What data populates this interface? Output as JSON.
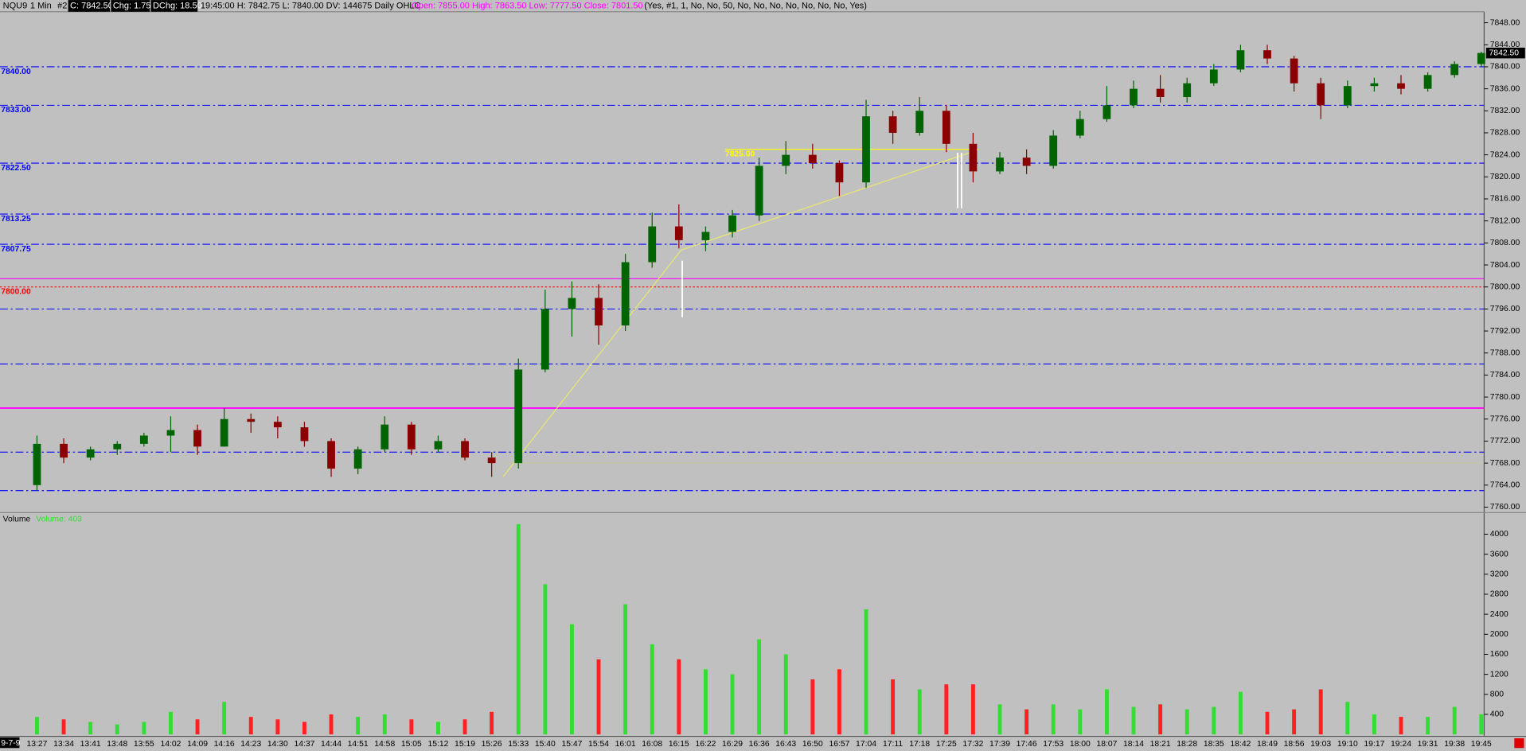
{
  "header": {
    "symbol": "NQU9",
    "interval": "1 Min",
    "chart_no": "#2",
    "close": "C: 7842.50",
    "chg": "Chg: 1.75",
    "dchg": "DChg: 18.50",
    "bar_info": "19:45:00 H: 7842.75 L: 7840.00 DV: 144675 Daily OHLC",
    "daily": "Open: 7855.00  High: 7863.50  Low: 7777.50  Close: 7801.50",
    "settings": "(Yes, #1, 1, No, No, 50, No, No, No, No, No, No, No, Yes)"
  },
  "date_label": "9-7-9",
  "chart_data": {
    "type": "candlestick",
    "categories": [
      "13:27",
      "13:34",
      "13:41",
      "13:48",
      "13:55",
      "14:02",
      "14:09",
      "14:16",
      "14:23",
      "14:30",
      "14:37",
      "14:44",
      "14:51",
      "14:58",
      "15:05",
      "15:12",
      "15:19",
      "15:26",
      "15:33",
      "15:40",
      "15:47",
      "15:54",
      "16:01",
      "16:08",
      "16:15",
      "16:22",
      "16:29",
      "16:36",
      "16:43",
      "16:50",
      "16:57",
      "17:04",
      "17:11",
      "17:18",
      "17:25",
      "17:32",
      "17:39",
      "17:46",
      "17:53",
      "18:00",
      "18:07",
      "18:14",
      "18:21",
      "18:28",
      "18:35",
      "18:42",
      "18:49",
      "18:56",
      "19:03",
      "19:10",
      "19:17",
      "19:24",
      "19:31",
      "19:38",
      "19:45"
    ],
    "open": [
      7764,
      7771.5,
      7769,
      7770.5,
      7771.5,
      7773,
      7774,
      7771,
      7776,
      7775.5,
      7774.5,
      7772,
      7767,
      7770.5,
      7775,
      7770.5,
      7772,
      7769,
      7768,
      7785,
      7796,
      7798,
      7793,
      7804.5,
      7811,
      7808.5,
      7810,
      7813,
      7822,
      7824,
      7822.5,
      7819,
      7831,
      7828,
      7832,
      7826,
      7821,
      7823.5,
      7822,
      7827.5,
      7830.5,
      7833,
      7836,
      7834.5,
      7837,
      7839.5,
      7843,
      7841.5,
      7837,
      7833,
      7836.5,
      7837,
      7836,
      7838.5,
      7840.5
    ],
    "high": [
      7773,
      7772.5,
      7771,
      7772,
      7773.5,
      7776.5,
      7775,
      7778,
      7777,
      7776.5,
      7775.5,
      7772.5,
      7771,
      7776.5,
      7775.5,
      7773,
      7772.5,
      7770,
      7787,
      7799.5,
      7801,
      7800.5,
      7806,
      7813.5,
      7815,
      7811,
      7814,
      7823.5,
      7826.5,
      7826,
      7823,
      7834,
      7832,
      7834.5,
      7833,
      7828,
      7824.5,
      7825,
      7828.5,
      7832,
      7836.5,
      7837.5,
      7838.5,
      7838,
      7840.5,
      7844,
      7844,
      7842,
      7838,
      7837.5,
      7838,
      7838.5,
      7839,
      7841,
      7842.75
    ],
    "low": [
      7763,
      7768,
      7768.5,
      7769.5,
      7771,
      7770,
      7769.5,
      7771,
      7773.5,
      7772.5,
      7771,
      7765.5,
      7766,
      7770,
      7769.5,
      7770,
      7768.5,
      7765.5,
      7767,
      7784.5,
      7791,
      7789.5,
      7792,
      7803.5,
      7807,
      7806.5,
      7809,
      7812,
      7820.5,
      7821.5,
      7816.5,
      7818,
      7826,
      7827.5,
      7824.5,
      7819,
      7820.5,
      7820.5,
      7821.5,
      7827,
      7830,
      7832.5,
      7833.5,
      7833.5,
      7836.5,
      7839,
      7840.5,
      7835.5,
      7830.5,
      7832.5,
      7835.5,
      7835,
      7835.5,
      7838,
      7840
    ],
    "close": [
      7771.5,
      7769,
      7770.5,
      7771.5,
      7773,
      7774,
      7771,
      7776,
      7775.5,
      7774.5,
      7772,
      7767,
      7770.5,
      7775,
      7770.5,
      7772,
      7769,
      7768,
      7785,
      7796,
      7798,
      7793,
      7804.5,
      7811,
      7808.5,
      7810,
      7813,
      7822,
      7824,
      7822.5,
      7819,
      7831,
      7828,
      7832,
      7826,
      7821,
      7823.5,
      7822,
      7827.5,
      7830.5,
      7833,
      7836,
      7834.5,
      7837,
      7839.5,
      7843,
      7841.5,
      7837,
      7833,
      7836.5,
      7837,
      7836,
      7838.5,
      7840.5,
      7842.5
    ],
    "up_color": "#006400",
    "down_color": "#8b0000",
    "ylim": [
      7759,
      7850
    ],
    "yticks": [
      {
        "value": 7760,
        "label": "7760.00"
      },
      {
        "value": 7764,
        "label": "7764.00"
      },
      {
        "value": 7768,
        "label": "7768.00"
      },
      {
        "value": 7772,
        "label": "7772.00"
      },
      {
        "value": 7776,
        "label": "7776.00"
      },
      {
        "value": 7780,
        "label": "7780.00"
      },
      {
        "value": 7784,
        "label": "7784.00"
      },
      {
        "value": 7788,
        "label": "7788.00"
      },
      {
        "value": 7792,
        "label": "7792.00"
      },
      {
        "value": 7796,
        "label": "7796.00"
      },
      {
        "value": 7800,
        "label": "7800.00"
      },
      {
        "value": 7804,
        "label": "7804.00"
      },
      {
        "value": 7808,
        "label": "7808.00"
      },
      {
        "value": 7812,
        "label": "7812.00"
      },
      {
        "value": 7816,
        "label": "7816.00"
      },
      {
        "value": 7820,
        "label": "7820.00"
      },
      {
        "value": 7824,
        "label": "7824.00"
      },
      {
        "value": 7828,
        "label": "7828.00"
      },
      {
        "value": 7832,
        "label": "7832.00"
      },
      {
        "value": 7836,
        "label": "7836.00"
      },
      {
        "value": 7840,
        "label": "7840.00"
      },
      {
        "value": 7844,
        "label": "7844.00"
      },
      {
        "value": 7848,
        "label": "7848.00"
      }
    ],
    "last_price": {
      "value": 7842.5,
      "label": "7842.50"
    },
    "levels": [
      {
        "value": 7840,
        "label": "7840.00",
        "color": "#0000ff",
        "style": "dash-dot"
      },
      {
        "value": 7833,
        "label": "7833.00",
        "color": "#0000ff",
        "style": "dash-dot"
      },
      {
        "value": 7822.5,
        "label": "7822.50",
        "color": "#0000ff",
        "style": "dash-dot"
      },
      {
        "value": 7813.25,
        "label": "7813.25",
        "color": "#0000ff",
        "style": "dash-dot"
      },
      {
        "value": 7807.75,
        "label": "7807.75",
        "color": "#0000ff",
        "style": "dash-dot"
      },
      {
        "value": 7801.5,
        "color": "#ff00ff",
        "style": "solid"
      },
      {
        "value": 7800,
        "label": "7800.00",
        "color": "#ff0000",
        "style": "dotted"
      },
      {
        "value": 7796,
        "color": "#0000ff",
        "style": "dash-dot"
      },
      {
        "value": 7786,
        "color": "#0000ff",
        "style": "dash-dot"
      },
      {
        "value": 7778,
        "color": "#ff00ff",
        "style": "solid"
      },
      {
        "value": 7770,
        "color": "#0000ff",
        "style": "dash-dot"
      },
      {
        "value": 7763,
        "color": "#0000ff",
        "style": "dash-dot"
      }
    ],
    "annotation": {
      "value": 7825,
      "label": "7825.00",
      "color": "#ffff00"
    },
    "volume": {
      "name": "Volume",
      "label": "Volume: 403",
      "up_color": "#33dd33",
      "down_color": "#ff2020",
      "values": [
        350,
        300,
        250,
        200,
        250,
        450,
        300,
        650,
        350,
        300,
        250,
        400,
        350,
        400,
        300,
        250,
        300,
        450,
        4200,
        3000,
        2200,
        1500,
        2600,
        1800,
        1500,
        1300,
        1200,
        1900,
        1600,
        1100,
        1300,
        2500,
        1100,
        900,
        1000,
        1000,
        600,
        500,
        600,
        500,
        900,
        550,
        600,
        500,
        550,
        850,
        450,
        500,
        900,
        650,
        400,
        350,
        350,
        550,
        403
      ],
      "ylim": [
        0,
        4430
      ],
      "yticks": [
        400,
        800,
        1200,
        1600,
        2000,
        2400,
        2800,
        3200,
        3600,
        4000
      ]
    }
  }
}
